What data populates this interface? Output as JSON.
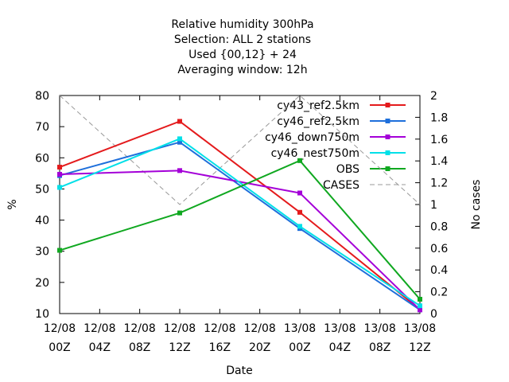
{
  "chart_data": {
    "type": "line",
    "title_lines": [
      "Relative humidity 300hPa",
      "Selection: ALL      2 stations",
      "Used {00,12} + 24",
      "Averaging window: 12h"
    ],
    "xlabel": "Date",
    "ylabel": "%",
    "y2label": "No cases",
    "x_ticks": [
      {
        "line1": "12/08",
        "line2": "00Z"
      },
      {
        "line1": "12/08",
        "line2": "04Z"
      },
      {
        "line1": "12/08",
        "line2": "08Z"
      },
      {
        "line1": "12/08",
        "line2": "12Z"
      },
      {
        "line1": "12/08",
        "line2": "16Z"
      },
      {
        "line1": "12/08",
        "line2": "20Z"
      },
      {
        "line1": "13/08",
        "line2": "00Z"
      },
      {
        "line1": "13/08",
        "line2": "04Z"
      },
      {
        "line1": "13/08",
        "line2": "08Z"
      },
      {
        "line1": "13/08",
        "line2": "12Z"
      }
    ],
    "x_hours": [
      0,
      12,
      24,
      36
    ],
    "xlim": [
      0,
      36
    ],
    "ylim": [
      10,
      80
    ],
    "yticks": [
      "10",
      "20",
      "30",
      "40",
      "50",
      "60",
      "70",
      "80"
    ],
    "y2lim": [
      0,
      2
    ],
    "y2ticks": [
      "0",
      "0.2",
      "0.4",
      "0.6",
      "0.8",
      "1",
      "1.2",
      "1.4",
      "1.6",
      "1.8",
      "2"
    ],
    "legend_position": "top-right",
    "series": [
      {
        "name": "cy43_ref2.5km",
        "color": "#e41a1c",
        "marker": "square",
        "values": [
          57.0,
          71.7,
          42.5,
          11.3
        ]
      },
      {
        "name": "cy46_ref2.5km",
        "color": "#1e6fdb",
        "marker": "square",
        "values": [
          54.3,
          65.0,
          37.3,
          11.2
        ]
      },
      {
        "name": "cy46_down750m",
        "color": "#a400d8",
        "marker": "square",
        "values": [
          54.7,
          55.9,
          48.7,
          11.2
        ]
      },
      {
        "name": "cy46_nest750m",
        "color": "#00e0e8",
        "marker": "square",
        "values": [
          50.5,
          66.1,
          38.0,
          12.5
        ]
      },
      {
        "name": "OBS",
        "color": "#10a820",
        "marker": "square",
        "values": [
          30.3,
          42.3,
          59.1,
          14.6
        ]
      },
      {
        "name": "CASES",
        "color": "#999999",
        "marker": "none",
        "dashed": true,
        "axis": "y2",
        "values": [
          2,
          1,
          2,
          1
        ]
      }
    ]
  }
}
